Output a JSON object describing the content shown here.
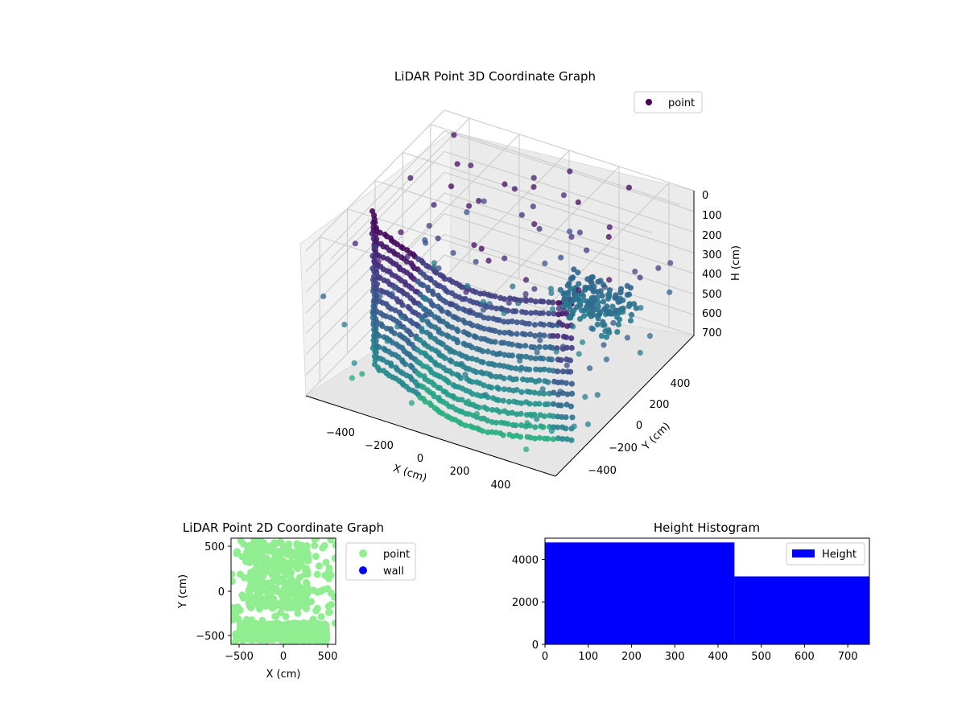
{
  "chart_data": [
    {
      "type": "scatter3d",
      "title": "LiDAR Point 3D Coordinate Graph",
      "xlabel": "X (cm)",
      "ylabel": "Y (cm)",
      "zlabel": "H (cm)",
      "xticks": [
        "−400",
        "−200",
        "0",
        "200",
        "400"
      ],
      "yticks": [
        "−400",
        "−200",
        "0",
        "200",
        "400"
      ],
      "zticks": [
        "0",
        "100",
        "200",
        "300",
        "400",
        "500",
        "600",
        "700"
      ],
      "xlim": [
        -500,
        500
      ],
      "ylim": [
        -500,
        500
      ],
      "zlim": [
        0,
        700
      ],
      "z_inverted": true,
      "colormap": "viridis",
      "legend": {
        "label": "point",
        "placement": "top-right",
        "marker_color": "#440154"
      },
      "grid": true,
      "series": [
        {
          "name": "point",
          "structures": [
            {
              "kind": "curved-wall",
              "x_range": [
                -450,
                450
              ],
              "y_range": [
                -350,
                100
              ],
              "h_range": [
                0,
                700
              ]
            },
            {
              "kind": "cluster",
              "x_center": 150,
              "y_center": 350,
              "h_range": [
                100,
                300
              ]
            }
          ]
        }
      ]
    },
    {
      "type": "scatter",
      "title": "LiDAR Point 2D Coordinate Graph",
      "xlabel": "X (cm)",
      "ylabel": "Y (cm)",
      "xticks": [
        "−500",
        "0",
        "500"
      ],
      "yticks": [
        "−500",
        "0",
        "500"
      ],
      "xlim": [
        -600,
        600
      ],
      "ylim": [
        -600,
        600
      ],
      "legend": {
        "placement": "outside-right"
      },
      "series": [
        {
          "name": "point",
          "color": "#90ee90"
        },
        {
          "name": "wall",
          "color": "#0000ff"
        }
      ]
    },
    {
      "type": "bar",
      "title": "Height Histogram",
      "xticks": [
        "0",
        "100",
        "200",
        "300",
        "400",
        "500",
        "600",
        "700"
      ],
      "yticks": [
        "0",
        "2000",
        "4000"
      ],
      "xlim": [
        0,
        750
      ],
      "ylim": [
        0,
        5000
      ],
      "legend": {
        "label": "Height",
        "placement": "top-right"
      },
      "series": [
        {
          "name": "Height",
          "color": "#0000ff",
          "bins": [
            {
              "x0": 0,
              "x1": 438,
              "count": 4800
            },
            {
              "x0": 438,
              "x1": 750,
              "count": 3200
            }
          ]
        }
      ]
    }
  ]
}
